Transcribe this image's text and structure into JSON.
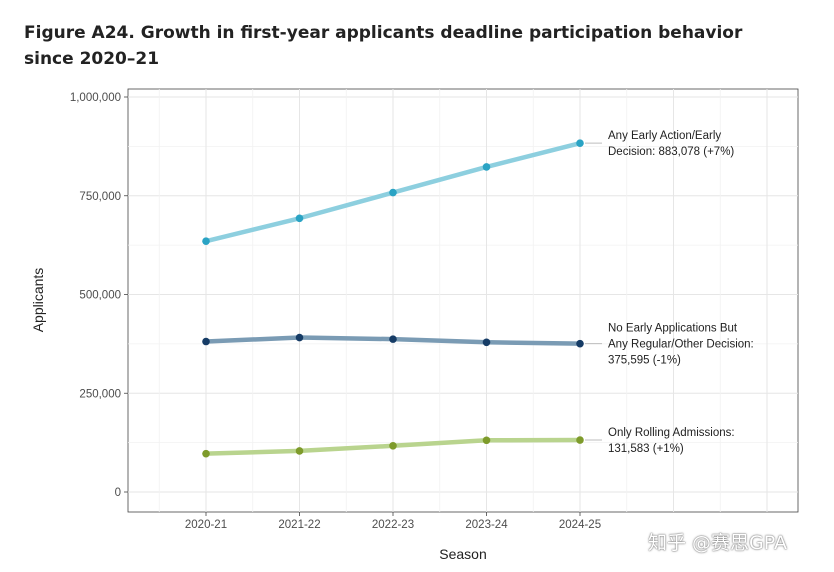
{
  "figure": {
    "title": "Figure A24. Growth in first-year applicants deadline participation behavior since 2020–21"
  },
  "watermark": "知乎 @赛思GPA",
  "chart_data": {
    "type": "line",
    "title": "Figure A24. Growth in first-year applicants deadline participation behavior since 2020–21",
    "xlabel": "Season",
    "ylabel": "Applicants",
    "categories": [
      "2020-21",
      "2021-22",
      "2022-23",
      "2023-24",
      "2024-25"
    ],
    "ylim": [
      0,
      1000000
    ],
    "yticks": [
      0,
      250000,
      500000,
      750000,
      1000000
    ],
    "ytick_labels": [
      "0",
      "250,000",
      "500,000",
      "750,000",
      "1,000,000"
    ],
    "grid": true,
    "series": [
      {
        "name": "Any Early Action/Early Decision",
        "values": [
          635000,
          693000,
          758000,
          823000,
          883078
        ],
        "line_color": "#8dcfdf",
        "point_color": "#2aa3c4",
        "label_lines": [
          "Any Early Action/Early",
          "Decision: 883,078 (+7%)"
        ]
      },
      {
        "name": "No Early Applications But Any Regular/Other Decision",
        "values": [
          381000,
          391000,
          387000,
          379000,
          375595
        ],
        "line_color": "#7a9bb4",
        "point_color": "#163c66",
        "label_lines": [
          "No Early Applications But",
          "Any Regular/Other Decision:",
          "375,595 (-1%)"
        ]
      },
      {
        "name": "Only Rolling Admissions",
        "values": [
          97000,
          104000,
          117000,
          131000,
          131583
        ],
        "line_color": "#b9d48e",
        "point_color": "#7e9b2b",
        "label_lines": [
          "Only Rolling Admissions:",
          "131,583 (+1%)"
        ]
      }
    ]
  }
}
